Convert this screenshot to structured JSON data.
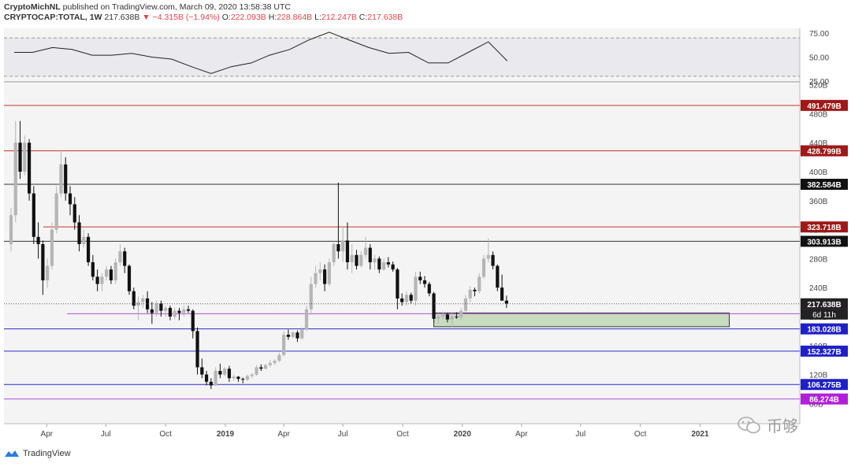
{
  "header": {
    "publisher": "CryptoMichNL",
    "published_text": "published on TradingView.com, March 09, 2020 13:58:38 UTC",
    "symbol": "CRYPTOCAP:TOTAL, 1W",
    "last": "217.638B",
    "change": "▼ −4.315B (−1.94%)",
    "open_label": "O:",
    "open": "222.093B",
    "high_label": "H:",
    "high": "228.864B",
    "low_label": "L:",
    "low": "212.247B",
    "close_label": "C:",
    "close": "217.638B"
  },
  "footer": {
    "brand": "TradingView"
  },
  "watermark": {
    "text": "币够"
  },
  "colors": {
    "up": "#b5b5b5",
    "down": "#111111",
    "red_line": "#c0392b",
    "black_line": "#333333",
    "purple_line": "#b04fd6",
    "blue_line": "#2a2ad1",
    "zone_fill": "#c8dcc0"
  },
  "chart_data": [
    {
      "type": "line",
      "title": "",
      "x": [
        "2018-02",
        "2018-03",
        "2018-04",
        "2018-05",
        "2018-06",
        "2018-07",
        "2018-08",
        "2018-09",
        "2018-10",
        "2018-11",
        "2018-12",
        "2019-01",
        "2019-02",
        "2019-03",
        "2019-04",
        "2019-05",
        "2019-06",
        "2019-07",
        "2019-08",
        "2019-09",
        "2019-10",
        "2019-11",
        "2019-12",
        "2020-01",
        "2020-02",
        "2020-03"
      ],
      "series": [
        {
          "values": [
            55,
            55,
            60,
            58,
            52,
            52,
            54,
            50,
            48,
            40,
            33,
            40,
            44,
            52,
            58,
            68,
            76,
            68,
            60,
            54,
            55,
            44,
            44,
            55,
            66,
            46
          ]
        }
      ],
      "ylim": [
        25,
        80
      ],
      "y_ticks": [
        "75.00",
        "50.00",
        "25.00"
      ],
      "upper_band": 70,
      "lower_band": 30
    },
    {
      "type": "candlestick",
      "title": "",
      "x_tick_labels": [
        "Apr",
        "Jul",
        "Oct",
        "2019",
        "Apr",
        "Jul",
        "Oct",
        "2020",
        "Apr",
        "Jul",
        "Oct",
        "2021"
      ],
      "y_tick_labels": [
        "520B",
        "480B",
        "440B",
        "400B",
        "360B",
        "320B",
        "280B",
        "240B",
        "200B",
        "160B",
        "120B",
        "80B"
      ],
      "ylim": [
        70,
        530
      ],
      "candles": [
        {
          "date": "2018-02-05",
          "o": 300,
          "h": 350,
          "l": 290,
          "c": 340
        },
        {
          "date": "2018-02-12",
          "o": 340,
          "h": 470,
          "l": 330,
          "c": 440
        },
        {
          "date": "2018-02-19",
          "o": 440,
          "h": 470,
          "l": 390,
          "c": 400
        },
        {
          "date": "2018-02-26",
          "o": 400,
          "h": 450,
          "l": 395,
          "c": 440
        },
        {
          "date": "2018-03-05",
          "o": 440,
          "h": 445,
          "l": 360,
          "c": 370
        },
        {
          "date": "2018-03-12",
          "o": 370,
          "h": 380,
          "l": 300,
          "c": 310
        },
        {
          "date": "2018-03-19",
          "o": 310,
          "h": 330,
          "l": 280,
          "c": 300
        },
        {
          "date": "2018-03-26",
          "o": 300,
          "h": 305,
          "l": 230,
          "c": 250
        },
        {
          "date": "2018-04-02",
          "o": 250,
          "h": 280,
          "l": 240,
          "c": 270
        },
        {
          "date": "2018-04-09",
          "o": 270,
          "h": 330,
          "l": 265,
          "c": 320
        },
        {
          "date": "2018-04-16",
          "o": 320,
          "h": 380,
          "l": 315,
          "c": 370
        },
        {
          "date": "2018-04-23",
          "o": 370,
          "h": 430,
          "l": 365,
          "c": 410
        },
        {
          "date": "2018-04-30",
          "o": 410,
          "h": 420,
          "l": 360,
          "c": 370
        },
        {
          "date": "2018-05-07",
          "o": 370,
          "h": 380,
          "l": 340,
          "c": 355
        },
        {
          "date": "2018-05-14",
          "o": 355,
          "h": 365,
          "l": 320,
          "c": 330
        },
        {
          "date": "2018-05-21",
          "o": 330,
          "h": 340,
          "l": 290,
          "c": 300
        },
        {
          "date": "2018-05-28",
          "o": 300,
          "h": 320,
          "l": 295,
          "c": 310
        },
        {
          "date": "2018-06-04",
          "o": 310,
          "h": 315,
          "l": 270,
          "c": 275
        },
        {
          "date": "2018-06-11",
          "o": 275,
          "h": 285,
          "l": 250,
          "c": 255
        },
        {
          "date": "2018-06-18",
          "o": 255,
          "h": 265,
          "l": 235,
          "c": 245
        },
        {
          "date": "2018-06-25",
          "o": 245,
          "h": 260,
          "l": 235,
          "c": 255
        },
        {
          "date": "2018-07-02",
          "o": 255,
          "h": 270,
          "l": 250,
          "c": 265
        },
        {
          "date": "2018-07-09",
          "o": 265,
          "h": 270,
          "l": 245,
          "c": 250
        },
        {
          "date": "2018-07-16",
          "o": 250,
          "h": 280,
          "l": 245,
          "c": 275
        },
        {
          "date": "2018-07-23",
          "o": 275,
          "h": 300,
          "l": 270,
          "c": 290
        },
        {
          "date": "2018-07-30",
          "o": 290,
          "h": 295,
          "l": 260,
          "c": 270
        },
        {
          "date": "2018-08-06",
          "o": 270,
          "h": 272,
          "l": 230,
          "c": 235
        },
        {
          "date": "2018-08-13",
          "o": 235,
          "h": 240,
          "l": 210,
          "c": 215
        },
        {
          "date": "2018-08-20",
          "o": 215,
          "h": 228,
          "l": 195,
          "c": 220
        },
        {
          "date": "2018-08-27",
          "o": 220,
          "h": 230,
          "l": 212,
          "c": 225
        },
        {
          "date": "2018-09-03",
          "o": 225,
          "h": 235,
          "l": 205,
          "c": 210
        },
        {
          "date": "2018-09-10",
          "o": 210,
          "h": 220,
          "l": 190,
          "c": 205
        },
        {
          "date": "2018-09-17",
          "o": 205,
          "h": 222,
          "l": 200,
          "c": 218
        },
        {
          "date": "2018-09-24",
          "o": 218,
          "h": 222,
          "l": 200,
          "c": 208
        },
        {
          "date": "2018-10-01",
          "o": 208,
          "h": 215,
          "l": 200,
          "c": 212
        },
        {
          "date": "2018-10-08",
          "o": 212,
          "h": 215,
          "l": 195,
          "c": 200
        },
        {
          "date": "2018-10-15",
          "o": 200,
          "h": 212,
          "l": 196,
          "c": 208
        },
        {
          "date": "2018-10-22",
          "o": 208,
          "h": 212,
          "l": 195,
          "c": 205
        },
        {
          "date": "2018-10-29",
          "o": 205,
          "h": 215,
          "l": 200,
          "c": 210
        },
        {
          "date": "2018-11-05",
          "o": 210,
          "h": 215,
          "l": 205,
          "c": 208
        },
        {
          "date": "2018-11-12",
          "o": 208,
          "h": 210,
          "l": 170,
          "c": 180
        },
        {
          "date": "2018-11-19",
          "o": 180,
          "h": 185,
          "l": 120,
          "c": 130
        },
        {
          "date": "2018-11-26",
          "o": 130,
          "h": 142,
          "l": 115,
          "c": 120
        },
        {
          "date": "2018-12-03",
          "o": 120,
          "h": 125,
          "l": 105,
          "c": 110
        },
        {
          "date": "2018-12-10",
          "o": 110,
          "h": 115,
          "l": 100,
          "c": 105
        },
        {
          "date": "2018-12-17",
          "o": 105,
          "h": 130,
          "l": 104,
          "c": 125
        },
        {
          "date": "2018-12-24",
          "o": 125,
          "h": 135,
          "l": 115,
          "c": 120
        },
        {
          "date": "2018-12-31",
          "o": 120,
          "h": 130,
          "l": 118,
          "c": 128
        },
        {
          "date": "2019-01-07",
          "o": 128,
          "h": 132,
          "l": 110,
          "c": 115
        },
        {
          "date": "2019-01-14",
          "o": 115,
          "h": 120,
          "l": 112,
          "c": 117
        },
        {
          "date": "2019-01-21",
          "o": 117,
          "h": 118,
          "l": 110,
          "c": 114
        },
        {
          "date": "2019-01-28",
          "o": 114,
          "h": 116,
          "l": 108,
          "c": 113
        },
        {
          "date": "2019-02-04",
          "o": 113,
          "h": 120,
          "l": 111,
          "c": 118
        },
        {
          "date": "2019-02-11",
          "o": 118,
          "h": 122,
          "l": 115,
          "c": 120
        },
        {
          "date": "2019-02-18",
          "o": 120,
          "h": 133,
          "l": 118,
          "c": 130
        },
        {
          "date": "2019-02-25",
          "o": 130,
          "h": 134,
          "l": 125,
          "c": 128
        },
        {
          "date": "2019-03-04",
          "o": 128,
          "h": 135,
          "l": 127,
          "c": 133
        },
        {
          "date": "2019-03-11",
          "o": 133,
          "h": 140,
          "l": 130,
          "c": 136
        },
        {
          "date": "2019-03-18",
          "o": 136,
          "h": 141,
          "l": 133,
          "c": 139
        },
        {
          "date": "2019-03-25",
          "o": 139,
          "h": 150,
          "l": 137,
          "c": 147
        },
        {
          "date": "2019-04-01",
          "o": 147,
          "h": 180,
          "l": 145,
          "c": 175
        },
        {
          "date": "2019-04-08",
          "o": 175,
          "h": 182,
          "l": 168,
          "c": 172
        },
        {
          "date": "2019-04-15",
          "o": 172,
          "h": 180,
          "l": 170,
          "c": 178
        },
        {
          "date": "2019-04-22",
          "o": 178,
          "h": 181,
          "l": 165,
          "c": 170
        },
        {
          "date": "2019-04-29",
          "o": 170,
          "h": 185,
          "l": 168,
          "c": 182
        },
        {
          "date": "2019-05-06",
          "o": 182,
          "h": 215,
          "l": 180,
          "c": 210
        },
        {
          "date": "2019-05-13",
          "o": 210,
          "h": 255,
          "l": 205,
          "c": 245
        },
        {
          "date": "2019-05-20",
          "o": 245,
          "h": 270,
          "l": 240,
          "c": 260
        },
        {
          "date": "2019-05-27",
          "o": 260,
          "h": 275,
          "l": 250,
          "c": 265
        },
        {
          "date": "2019-06-03",
          "o": 265,
          "h": 272,
          "l": 235,
          "c": 245
        },
        {
          "date": "2019-06-10",
          "o": 245,
          "h": 280,
          "l": 242,
          "c": 275
        },
        {
          "date": "2019-06-17",
          "o": 275,
          "h": 305,
          "l": 270,
          "c": 300
        },
        {
          "date": "2019-06-24",
          "o": 300,
          "h": 385,
          "l": 280,
          "c": 290
        },
        {
          "date": "2019-07-01",
          "o": 290,
          "h": 325,
          "l": 275,
          "c": 305
        },
        {
          "date": "2019-07-08",
          "o": 305,
          "h": 330,
          "l": 265,
          "c": 275
        },
        {
          "date": "2019-07-15",
          "o": 275,
          "h": 300,
          "l": 260,
          "c": 285
        },
        {
          "date": "2019-07-22",
          "o": 285,
          "h": 292,
          "l": 265,
          "c": 270
        },
        {
          "date": "2019-07-29",
          "o": 270,
          "h": 290,
          "l": 268,
          "c": 285
        },
        {
          "date": "2019-08-05",
          "o": 285,
          "h": 310,
          "l": 280,
          "c": 295
        },
        {
          "date": "2019-08-12",
          "o": 295,
          "h": 300,
          "l": 265,
          "c": 275
        },
        {
          "date": "2019-08-19",
          "o": 275,
          "h": 285,
          "l": 265,
          "c": 280
        },
        {
          "date": "2019-08-26",
          "o": 280,
          "h": 283,
          "l": 260,
          "c": 265
        },
        {
          "date": "2019-09-02",
          "o": 265,
          "h": 280,
          "l": 263,
          "c": 275
        },
        {
          "date": "2019-09-09",
          "o": 275,
          "h": 282,
          "l": 268,
          "c": 272
        },
        {
          "date": "2019-09-16",
          "o": 272,
          "h": 276,
          "l": 262,
          "c": 265
        },
        {
          "date": "2019-09-23",
          "o": 265,
          "h": 267,
          "l": 210,
          "c": 225
        },
        {
          "date": "2019-09-30",
          "o": 225,
          "h": 232,
          "l": 215,
          "c": 220
        },
        {
          "date": "2019-10-07",
          "o": 220,
          "h": 235,
          "l": 215,
          "c": 230
        },
        {
          "date": "2019-10-14",
          "o": 230,
          "h": 233,
          "l": 218,
          "c": 222
        },
        {
          "date": "2019-10-21",
          "o": 222,
          "h": 262,
          "l": 215,
          "c": 255
        },
        {
          "date": "2019-10-28",
          "o": 255,
          "h": 262,
          "l": 245,
          "c": 250
        },
        {
          "date": "2019-11-04",
          "o": 250,
          "h": 256,
          "l": 240,
          "c": 245
        },
        {
          "date": "2019-11-11",
          "o": 245,
          "h": 248,
          "l": 228,
          "c": 232
        },
        {
          "date": "2019-11-18",
          "o": 232,
          "h": 234,
          "l": 192,
          "c": 197
        },
        {
          "date": "2019-11-25",
          "o": 197,
          "h": 205,
          "l": 190,
          "c": 200
        },
        {
          "date": "2019-12-02",
          "o": 200,
          "h": 207,
          "l": 196,
          "c": 203
        },
        {
          "date": "2019-12-09",
          "o": 203,
          "h": 205,
          "l": 192,
          "c": 196
        },
        {
          "date": "2019-12-16",
          "o": 196,
          "h": 205,
          "l": 185,
          "c": 200
        },
        {
          "date": "2019-12-23",
          "o": 200,
          "h": 206,
          "l": 197,
          "c": 199
        },
        {
          "date": "2019-12-30",
          "o": 199,
          "h": 212,
          "l": 196,
          "c": 208
        },
        {
          "date": "2020-01-06",
          "o": 208,
          "h": 230,
          "l": 205,
          "c": 225
        },
        {
          "date": "2020-01-13",
          "o": 225,
          "h": 242,
          "l": 220,
          "c": 237
        },
        {
          "date": "2020-01-20",
          "o": 237,
          "h": 240,
          "l": 228,
          "c": 235
        },
        {
          "date": "2020-01-27",
          "o": 235,
          "h": 260,
          "l": 232,
          "c": 255
        },
        {
          "date": "2020-02-03",
          "o": 255,
          "h": 285,
          "l": 252,
          "c": 280
        },
        {
          "date": "2020-02-10",
          "o": 280,
          "h": 308,
          "l": 275,
          "c": 285
        },
        {
          "date": "2020-02-17",
          "o": 285,
          "h": 290,
          "l": 265,
          "c": 270
        },
        {
          "date": "2020-02-24",
          "o": 270,
          "h": 272,
          "l": 235,
          "c": 240
        },
        {
          "date": "2020-03-02",
          "o": 240,
          "h": 258,
          "l": 222,
          "c": 222
        },
        {
          "date": "2020-03-09",
          "o": 222,
          "h": 229,
          "l": 212,
          "c": 218
        }
      ],
      "horizontal_levels": [
        {
          "value": 491.479,
          "label": "491.479B",
          "color": "red"
        },
        {
          "value": 428.799,
          "label": "428.799B",
          "color": "red"
        },
        {
          "value": 382.584,
          "label": "382.584B",
          "color": "black"
        },
        {
          "value": 323.718,
          "label": "323.718B",
          "color": "red"
        },
        {
          "value": 303.913,
          "label": "303.913B",
          "color": "black"
        },
        {
          "value": 203.889,
          "label": "203.889B",
          "color": "purple"
        },
        {
          "value": 183.028,
          "label": "183.028B",
          "color": "blue"
        },
        {
          "value": 152.327,
          "label": "152.327B",
          "color": "blue"
        },
        {
          "value": 106.275,
          "label": "106.275B",
          "color": "blue"
        },
        {
          "value": 86.274,
          "label": "86.274B",
          "color": "purple"
        }
      ],
      "last_price": {
        "value": 217.638,
        "label": "217.638B"
      },
      "countdown": "6d 11h",
      "zone": {
        "from_date": "2019-11-18",
        "to_date": "2021-02-15",
        "low": 186,
        "high": 205
      }
    }
  ]
}
